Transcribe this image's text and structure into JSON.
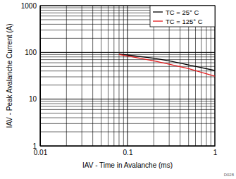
{
  "chart_data": {
    "type": "line",
    "x_label": "IAV - Time in Avalanche (ms)",
    "y_label": "IAV - Peak Avalanche Current (A)",
    "figure_id": "D028",
    "log": true,
    "grid": true,
    "legend": "top-right",
    "xlim": [
      0.01,
      1
    ],
    "ylim": [
      1,
      1000
    ],
    "xticks": [
      0.01,
      0.1,
      1
    ],
    "yticks": [
      1,
      10,
      100,
      1000
    ],
    "x": [
      0.08,
      0.1,
      0.2,
      0.3,
      0.5,
      1
    ],
    "series": [
      {
        "name": "TC = 25° C",
        "color": "#000000",
        "values": [
          92,
          88,
          75,
          66,
          54,
          41
        ]
      },
      {
        "name": "TC = 125° C",
        "color": "#e41a1c",
        "values": [
          90,
          84,
          66,
          56,
          45,
          31
        ]
      }
    ]
  }
}
